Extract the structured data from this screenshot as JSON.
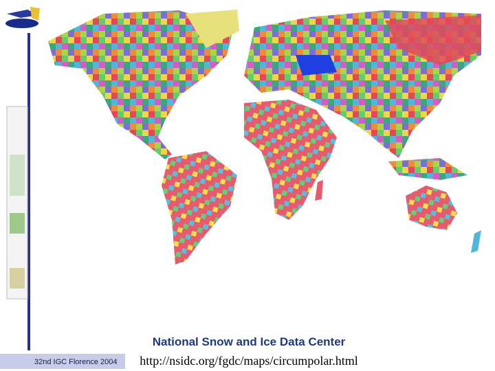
{
  "slide": {
    "caption_title": "National Snow and Ice Data Center",
    "caption_url": "http://nsidc.org/fgdc/maps/circumpolar.html",
    "footer": "32nd IGC Florence 2004"
  }
}
